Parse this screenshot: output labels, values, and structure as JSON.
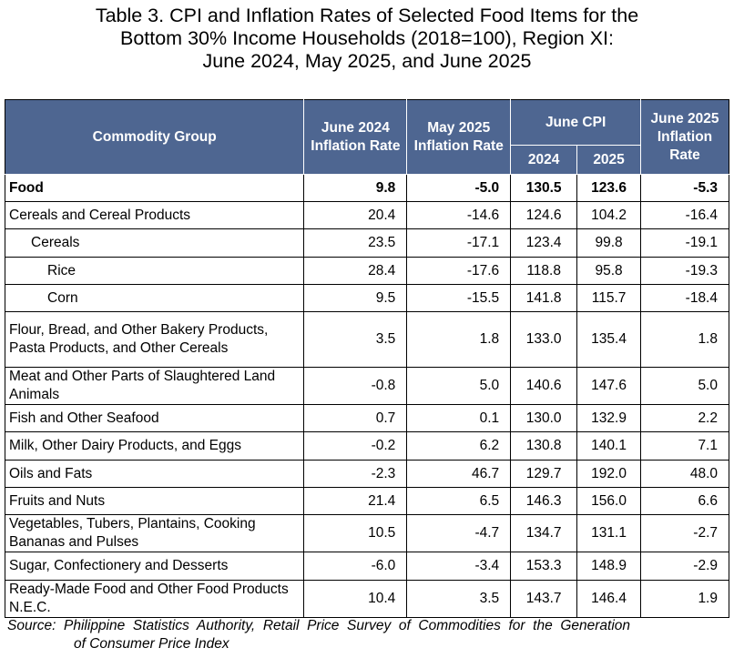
{
  "title": {
    "line1": "Table 3. CPI and Inflation Rates of Selected Food Items for the",
    "line2": "Bottom 30% Income Households (2018=100), Region XI:",
    "line3": "June 2024, May 2025, and June 2025"
  },
  "table": {
    "headers": {
      "commodity": "Commodity Group",
      "june2024": "June 2024 Inflation Rate",
      "may2025": "May 2025 Inflation Rate",
      "june_cpi": "June CPI",
      "cpi_2024": "2024",
      "cpi_2025": "2025",
      "june2025": "June 2025 Inflation Rate"
    },
    "rows": [
      {
        "name": "Food",
        "jun24": "9.8",
        "may25": "-5.0",
        "cpi24": "130.5",
        "cpi25": "123.6",
        "jun25": "-5.3"
      },
      {
        "name": "Cereals and Cereal Products",
        "jun24": "20.4",
        "may25": "-14.6",
        "cpi24": "124.6",
        "cpi25": "104.2",
        "jun25": "-16.4"
      },
      {
        "name": "Cereals",
        "jun24": "23.5",
        "may25": "-17.1",
        "cpi24": "123.4",
        "cpi25": "99.8",
        "jun25": "-19.1"
      },
      {
        "name": "Rice",
        "jun24": "28.4",
        "may25": "-17.6",
        "cpi24": "118.8",
        "cpi25": "95.8",
        "jun25": "-19.3"
      },
      {
        "name": "Corn",
        "jun24": "9.5",
        "may25": "-15.5",
        "cpi24": "141.8",
        "cpi25": "115.7",
        "jun25": "-18.4"
      },
      {
        "name": "Flour, Bread, and Other Bakery Products, Pasta Products, and Other Cereals",
        "jun24": "3.5",
        "may25": "1.8",
        "cpi24": "133.0",
        "cpi25": "135.4",
        "jun25": "1.8"
      },
      {
        "name": "Meat and Other Parts of Slaughtered Land Animals",
        "jun24": "-0.8",
        "may25": "5.0",
        "cpi24": "140.6",
        "cpi25": "147.6",
        "jun25": "5.0"
      },
      {
        "name": "Fish and Other Seafood",
        "jun24": "0.7",
        "may25": "0.1",
        "cpi24": "130.0",
        "cpi25": "132.9",
        "jun25": "2.2"
      },
      {
        "name": "Milk, Other Dairy Products, and Eggs",
        "jun24": "-0.2",
        "may25": "6.2",
        "cpi24": "130.8",
        "cpi25": "140.1",
        "jun25": "7.1"
      },
      {
        "name": "Oils and Fats",
        "jun24": "-2.3",
        "may25": "46.7",
        "cpi24": "129.7",
        "cpi25": "192.0",
        "jun25": "48.0"
      },
      {
        "name": "Fruits and Nuts",
        "jun24": "21.4",
        "may25": "6.5",
        "cpi24": "146.3",
        "cpi25": "156.0",
        "jun25": "6.6"
      },
      {
        "name": "Vegetables, Tubers, Plantains, Cooking Bananas and Pulses",
        "jun24": "10.5",
        "may25": "-4.7",
        "cpi24": "134.7",
        "cpi25": "131.1",
        "jun25": "-2.7"
      },
      {
        "name": "Sugar, Confectionery and Desserts",
        "jun24": "-6.0",
        "may25": "-3.4",
        "cpi24": "153.3",
        "cpi25": "148.9",
        "jun25": "-2.9"
      },
      {
        "name": "Ready-Made Food and Other Food Products N.E.C.",
        "jun24": "10.4",
        "may25": "3.5",
        "cpi24": "143.7",
        "cpi25": "146.4",
        "jun25": "1.9"
      }
    ]
  },
  "source": {
    "line1": "Source:  Philippine  Statistics  Authority,  Retail  Price  Survey  of  Commodities  for  the  Generation",
    "line2": "of Consumer Price Index"
  }
}
